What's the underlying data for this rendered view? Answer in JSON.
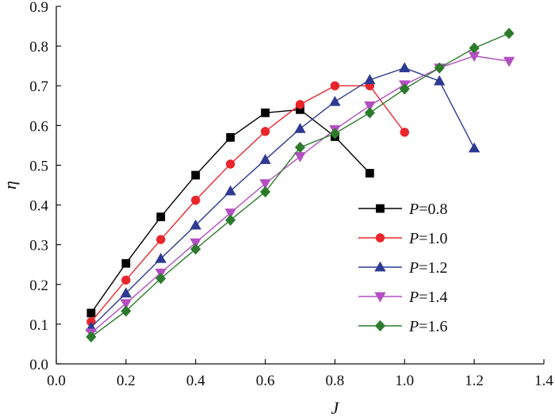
{
  "chart_data": {
    "type": "line",
    "title": "",
    "xlabel": "J",
    "ylabel": "η",
    "xlim": [
      0.0,
      1.4
    ],
    "ylim": [
      0.0,
      0.9
    ],
    "xticks": [
      "0.0",
      "0.2",
      "0.4",
      "0.6",
      "0.8",
      "1.0",
      "1.2",
      "1.4"
    ],
    "yticks": [
      "0.0",
      "0.1",
      "0.2",
      "0.3",
      "0.4",
      "0.5",
      "0.6",
      "0.7",
      "0.8",
      "0.9"
    ],
    "grid": false,
    "legend_position": "right",
    "series": [
      {
        "name": "P=0.8",
        "legend_prefix": "P",
        "legend_value": "=0.8",
        "color": "#000000",
        "marker": "square",
        "x": [
          0.1,
          0.2,
          0.3,
          0.4,
          0.5,
          0.6,
          0.7,
          0.8,
          0.9
        ],
        "y": [
          0.128,
          0.253,
          0.37,
          0.475,
          0.57,
          0.632,
          0.64,
          0.572,
          0.48
        ]
      },
      {
        "name": "P=1.0",
        "legend_prefix": "P",
        "legend_value": "=1.0",
        "color": "#e8262c",
        "marker": "circle",
        "x": [
          0.1,
          0.2,
          0.3,
          0.4,
          0.5,
          0.6,
          0.7,
          0.8,
          0.9,
          1.0
        ],
        "y": [
          0.106,
          0.211,
          0.313,
          0.412,
          0.503,
          0.585,
          0.653,
          0.7,
          0.7,
          0.583
        ]
      },
      {
        "name": "P=1.2",
        "legend_prefix": "P",
        "legend_value": "=1.2",
        "color": "#2e3a92",
        "marker": "triangle-up",
        "x": [
          0.1,
          0.2,
          0.3,
          0.4,
          0.5,
          0.6,
          0.7,
          0.8,
          0.9,
          1.0,
          1.1,
          1.2
        ],
        "y": [
          0.092,
          0.178,
          0.265,
          0.349,
          0.435,
          0.514,
          0.592,
          0.66,
          0.715,
          0.745,
          0.712,
          0.543
        ]
      },
      {
        "name": "P=1.4",
        "legend_prefix": "P",
        "legend_value": "=1.4",
        "color": "#b34fc0",
        "marker": "triangle-down",
        "x": [
          0.1,
          0.2,
          0.3,
          0.4,
          0.5,
          0.6,
          0.7,
          0.8,
          0.9,
          1.0,
          1.1,
          1.2,
          1.3
        ],
        "y": [
          0.078,
          0.152,
          0.229,
          0.305,
          0.38,
          0.454,
          0.522,
          0.59,
          0.65,
          0.703,
          0.745,
          0.775,
          0.762
        ]
      },
      {
        "name": "P=1.6",
        "legend_prefix": "P",
        "legend_value": "=1.6",
        "color": "#2d7a2d",
        "marker": "diamond",
        "x": [
          0.1,
          0.2,
          0.3,
          0.4,
          0.5,
          0.6,
          0.7,
          0.8,
          0.9,
          1.0,
          1.1,
          1.2,
          1.3
        ],
        "y": [
          0.068,
          0.133,
          0.215,
          0.289,
          0.362,
          0.433,
          0.545,
          0.58,
          0.632,
          0.692,
          0.745,
          0.795,
          0.832
        ]
      }
    ]
  }
}
